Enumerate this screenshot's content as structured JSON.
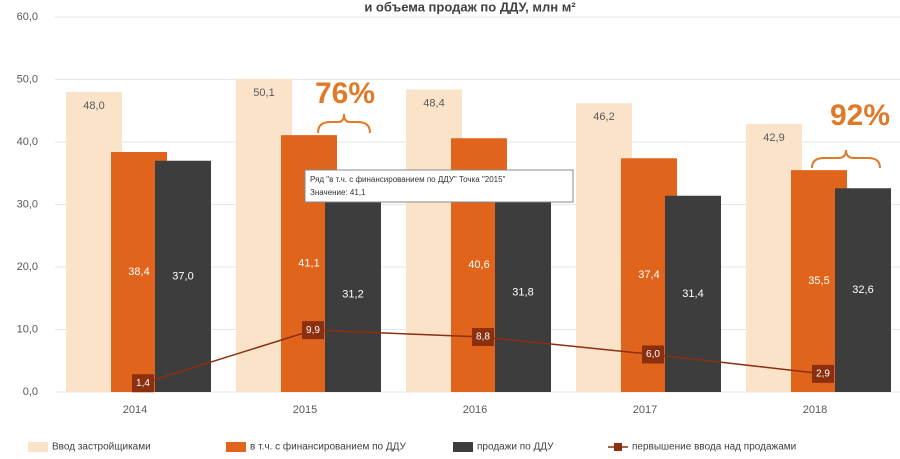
{
  "chart_data": {
    "type": "bar",
    "title": "и объема продаж по ДДУ, млн м²",
    "categories": [
      "2014",
      "2015",
      "2016",
      "2017",
      "2018"
    ],
    "series": [
      {
        "name": "Ввод застройщиками",
        "color": "#fbe3c9",
        "values": [
          48.0,
          50.1,
          48.4,
          46.2,
          42.9
        ],
        "value_labels": [
          "48,0",
          "50,1",
          "48,4",
          "46,2",
          "42,9"
        ]
      },
      {
        "name": "в т.ч. с финансированием по ДДУ",
        "color": "#e0641b",
        "values": [
          38.4,
          41.1,
          40.6,
          37.4,
          35.5
        ],
        "value_labels": [
          "38,4",
          "41,1",
          "40,6",
          "37,4",
          "35,5"
        ]
      },
      {
        "name": "продажи по ДДУ",
        "color": "#3d3d3d",
        "values": [
          37.0,
          31.2,
          31.8,
          31.4,
          32.6
        ],
        "value_labels": [
          "37,0",
          "31,2",
          "31,8",
          "31,4",
          "32,6"
        ]
      },
      {
        "name": "первышение ввода над продажами",
        "type": "line",
        "color": "#8b2f0f",
        "values": [
          1.4,
          9.9,
          8.8,
          6.0,
          2.9
        ],
        "value_labels": [
          "1,4",
          "9,9",
          "8,8",
          "6,0",
          "2,9"
        ]
      }
    ],
    "ylim": [
      0,
      60
    ],
    "yticks": [
      {
        "value": 0,
        "label": "0,0"
      },
      {
        "value": 10,
        "label": "10,0"
      },
      {
        "value": 20,
        "label": "20,0"
      },
      {
        "value": 30,
        "label": "30,0"
      },
      {
        "value": 40,
        "label": "40,0"
      },
      {
        "value": 50,
        "label": "50,0"
      },
      {
        "value": 60,
        "label": "60,0"
      }
    ],
    "grid": true,
    "legend": "bottom",
    "annotations": [
      "76%",
      "92%"
    ],
    "tooltip": [
      "Ряд \"в т.ч. с финансированием по ДДУ\" Точка \"2015\"",
      "Значение: 41,1"
    ]
  }
}
